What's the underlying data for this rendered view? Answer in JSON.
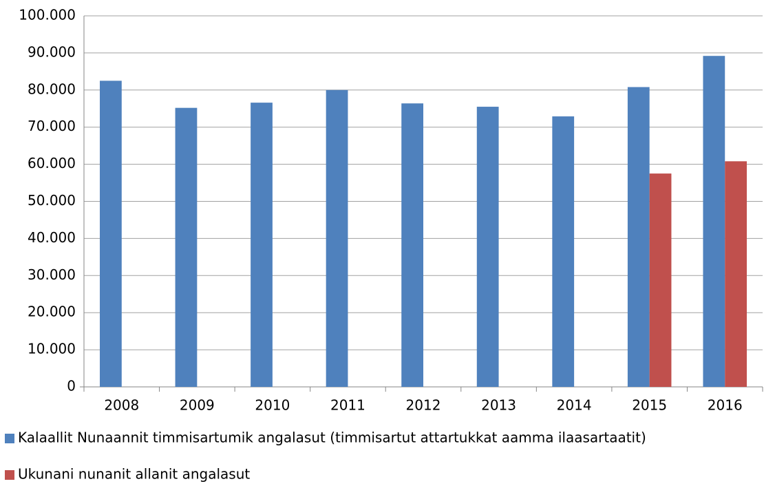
{
  "chart_data": {
    "type": "bar",
    "categories": [
      "2008",
      "2009",
      "2010",
      "2011",
      "2012",
      "2013",
      "2014",
      "2015",
      "2016"
    ],
    "series": [
      {
        "name": "Kalaallit Nunaannit timmisartumik angalasut (timmisartut attartukkat aamma ilaasartaatit)",
        "color": "#4f81bd",
        "values": [
          82500,
          75200,
          76600,
          80000,
          76400,
          75500,
          72900,
          80800,
          89200
        ]
      },
      {
        "name": "Ukunani nunanit allanit angalasut",
        "color": "#c0504d",
        "values": [
          null,
          null,
          null,
          null,
          null,
          null,
          null,
          57500,
          60800
        ]
      }
    ],
    "ylim": [
      0,
      100000
    ],
    "yticks": [
      0,
      {
        "value": 10000,
        "label": "10.000"
      },
      {
        "value": 20000,
        "label": "20.000"
      },
      {
        "value": 30000,
        "label": "30.000"
      },
      {
        "value": 40000,
        "label": "40.000"
      },
      {
        "value": 50000,
        "label": "50.000"
      },
      {
        "value": 60000,
        "label": "60.000"
      },
      {
        "value": 70000,
        "label": "70.000"
      },
      {
        "value": 80000,
        "label": "80.000"
      },
      {
        "value": 90000,
        "label": "90.000"
      },
      {
        "value": 100000,
        "label": "100.000"
      }
    ],
    "grid": true
  }
}
